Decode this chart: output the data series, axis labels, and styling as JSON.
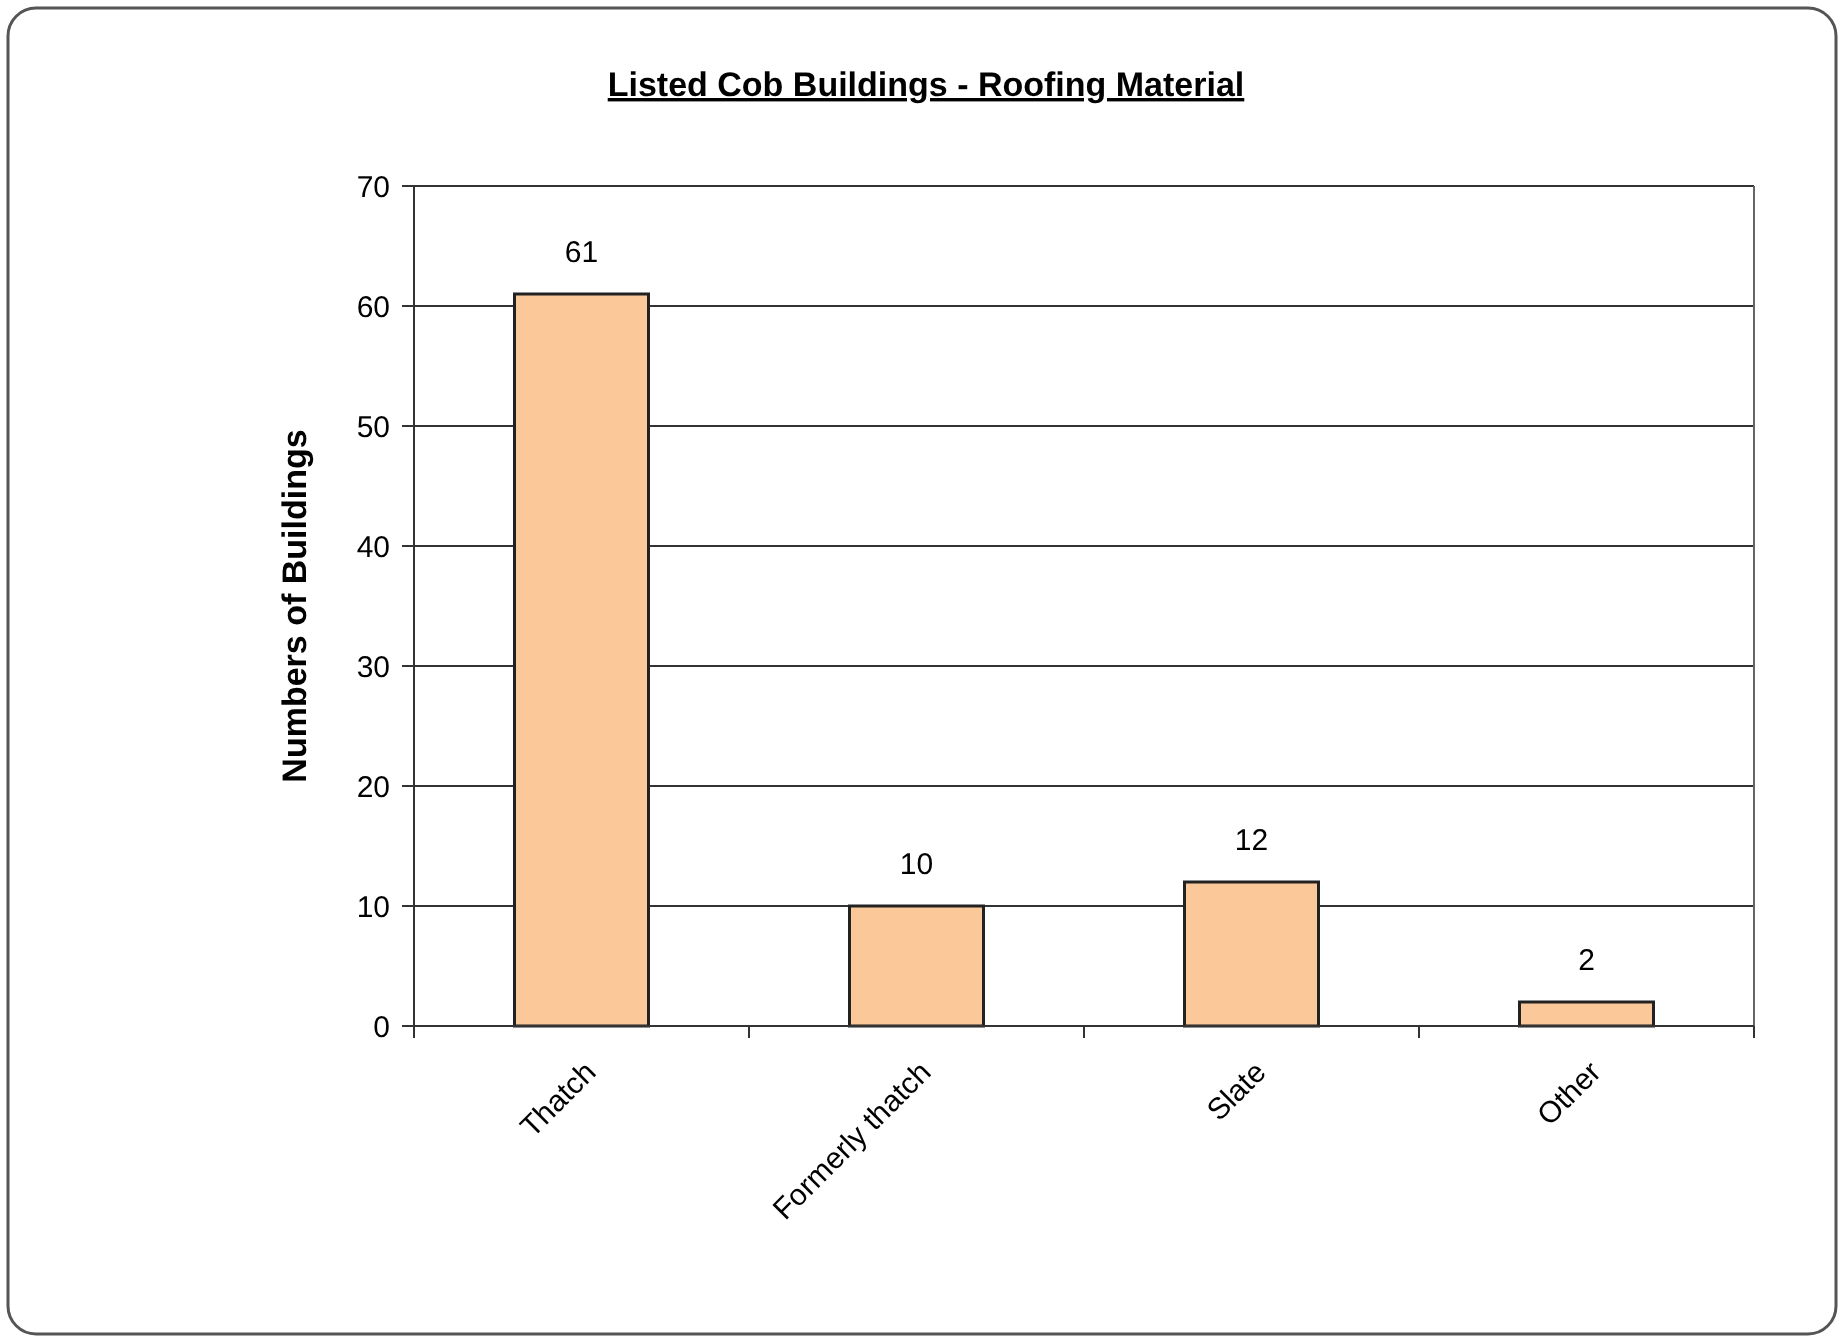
{
  "chart_data": {
    "type": "bar",
    "title": "Listed Cob Buildings - Roofing Material",
    "ylabel": "Numbers of Buildings",
    "categories": [
      "Thatch",
      "Formerly thatch",
      "Slate",
      "Other"
    ],
    "values": [
      61,
      10,
      12,
      2
    ],
    "color": "#fbc89a",
    "ylim": [
      0,
      70
    ],
    "yticks": [
      0,
      10,
      20,
      30,
      40,
      50,
      60,
      70
    ],
    "grid": "y",
    "data_labels": true
  }
}
